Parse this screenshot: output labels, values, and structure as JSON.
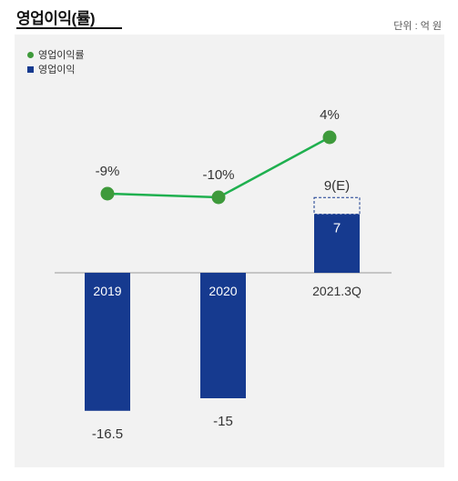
{
  "header": {
    "title": "영업이익(률)",
    "unit": "단위 : 억 원"
  },
  "colors": {
    "bar": "#163a8f",
    "line": "#1fb04f",
    "marker": "#3e9a3b",
    "panel": "#f2f2f2"
  },
  "chart_data": {
    "type": "bar+line",
    "categories": [
      "2019",
      "2020",
      "2021.3Q"
    ],
    "series": [
      {
        "name": "영업이익",
        "type": "bar",
        "values": [
          -16.5,
          -15,
          7
        ],
        "labels": [
          "-16.5",
          "-15",
          "7"
        ]
      },
      {
        "name": "영업이익(E)",
        "type": "bar-estimate",
        "values": [
          null,
          null,
          9
        ],
        "labels": [
          "",
          "",
          "9(E)"
        ]
      },
      {
        "name": "영업이익률",
        "type": "line",
        "values": [
          -9,
          -10,
          4
        ],
        "labels": [
          "-9%",
          "-10%",
          "4%"
        ]
      }
    ],
    "legend": [
      "영업이익률",
      "영업이익"
    ],
    "legend_position": "top-left",
    "grid": false
  }
}
